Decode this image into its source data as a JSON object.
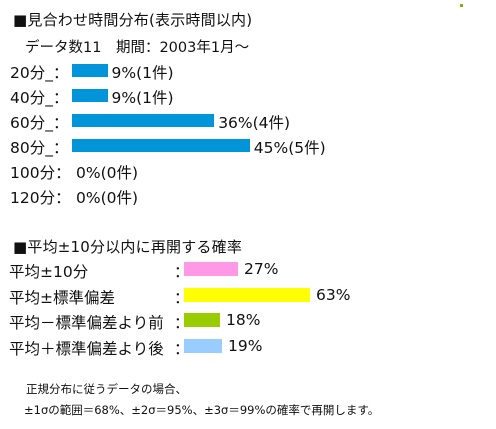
{
  "section1": {
    "title": "■見合わせ時間分布(表示時間以内)",
    "subtitle": "データ数11　期間：2003年1月～"
  },
  "section2": {
    "title": "■平均±10分以内に再開する確率"
  },
  "chart_data": [
    {
      "type": "bar",
      "orientation": "horizontal",
      "title": "■見合わせ時間分布(表示時間以内)",
      "subtitle": "データ数11　期間：2003年1月～",
      "categories": [
        "20分_：",
        "40分_：",
        "60分_：",
        "80分_：",
        "100分：",
        "120分："
      ],
      "values": [
        9,
        9,
        36,
        45,
        0,
        0
      ],
      "counts": [
        1,
        1,
        4,
        5,
        0,
        0
      ],
      "value_labels": [
        "9%(1件)",
        "9%(1件)",
        "36%(4件)",
        "45%(5件)",
        "0%(0件)",
        "0%(0件)"
      ],
      "unit": "%",
      "xlim": [
        0,
        100
      ],
      "grid": false,
      "colors": [
        "#0095d9"
      ]
    },
    {
      "type": "bar",
      "orientation": "horizontal",
      "title": "■平均±10分以内に再開する確率",
      "categories": [
        "平均±10分",
        "平均±標準偏差",
        "平均－標準偏差より前",
        "平均＋標準偏差より後"
      ],
      "values": [
        27,
        63,
        18,
        19
      ],
      "value_labels": [
        "27%",
        "63%",
        "18%",
        "19%"
      ],
      "separator": "：",
      "unit": "%",
      "xlim": [
        0,
        100
      ],
      "grid": false,
      "colors": [
        "#ff99e6",
        "#ffff00",
        "#99cc00",
        "#99ccff"
      ]
    }
  ],
  "notes": [
    "正規分布に従うデータの場合、",
    "±1σの範囲＝68%、±2σ＝95%、±3σ＝99%の確率で再開します。"
  ]
}
